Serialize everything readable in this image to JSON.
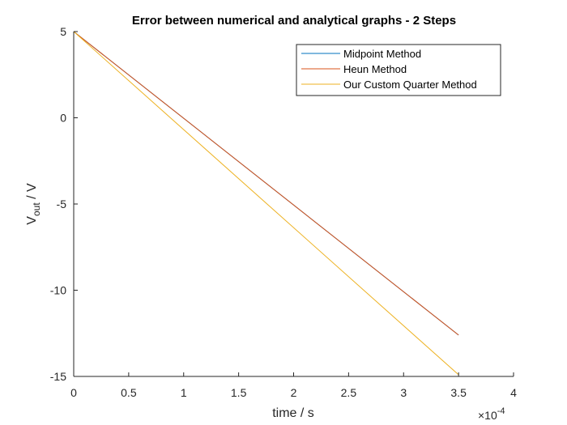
{
  "chart_data": {
    "type": "line",
    "title": "Error between numerical and analytical graphs - 2 Steps",
    "xlabel": "time / s",
    "ylabel": {
      "main": "V",
      "sub": "out",
      "unit": " / V"
    },
    "x_exponent": {
      "base": "×10",
      "power": "-4"
    },
    "xlim": [
      0,
      4
    ],
    "ylim": [
      -15,
      5
    ],
    "xticks": [
      0,
      0.5,
      1,
      1.5,
      2,
      2.5,
      3,
      3.5,
      4
    ],
    "xtick_labels": [
      "0",
      "0.5",
      "1",
      "1.5",
      "2",
      "2.5",
      "3",
      "3.5",
      "4"
    ],
    "yticks": [
      5,
      0,
      -5,
      -10,
      -15
    ],
    "ytick_labels": [
      "5",
      "0",
      "-5",
      "-10",
      "-15"
    ],
    "grid": false,
    "legend_position": "top-right",
    "series": [
      {
        "name": "Midpoint Method",
        "color": "#0072BD",
        "x": [
          0,
          3.5
        ],
        "y": [
          5,
          -12.6
        ]
      },
      {
        "name": "Heun Method",
        "color": "#D95319",
        "x": [
          0,
          3.5
        ],
        "y": [
          5,
          -12.6
        ]
      },
      {
        "name": "Our Custom Quarter Method",
        "color": "#EDB120",
        "x": [
          0,
          3.5
        ],
        "y": [
          5,
          -14.9
        ]
      }
    ]
  }
}
